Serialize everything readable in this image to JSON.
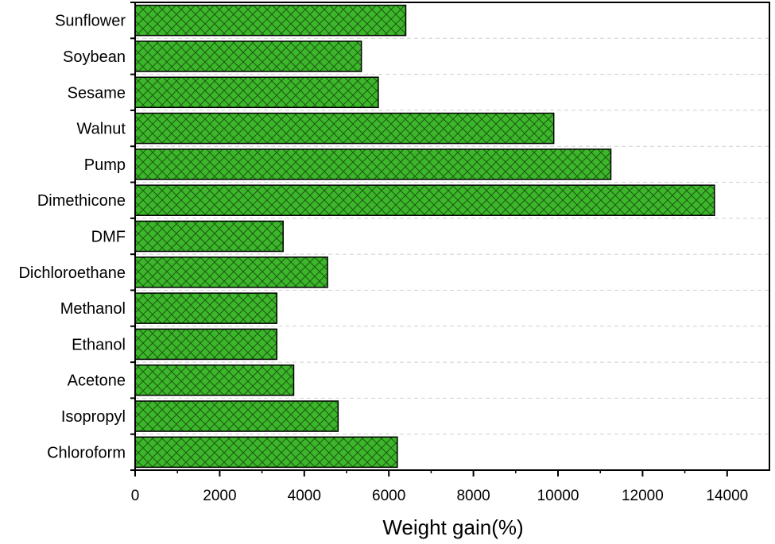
{
  "chart_data": {
    "type": "bar",
    "orientation": "horizontal",
    "categories": [
      "Sunflower",
      "Soybean",
      "Sesame",
      "Walnut",
      "Pump",
      "Dimethicone",
      "DMF",
      "Dichloroethane",
      "Methanol",
      "Ethanol",
      "Acetone",
      "Isopropyl",
      "Chloroform"
    ],
    "values": [
      6400,
      5350,
      5750,
      9900,
      11250,
      13700,
      3500,
      4550,
      3350,
      3350,
      3750,
      4800,
      6200
    ],
    "xlabel": "Weight gain(%)",
    "ylabel": "",
    "title": "",
    "xlim": [
      0,
      15000
    ],
    "xticks": [
      "0",
      "2000",
      "4000",
      "6000",
      "8000",
      "10000",
      "12000",
      "14000"
    ],
    "grid": "horizontal dashed",
    "bar_color": "#3cb62a",
    "bar_pattern": "crosshatch"
  }
}
